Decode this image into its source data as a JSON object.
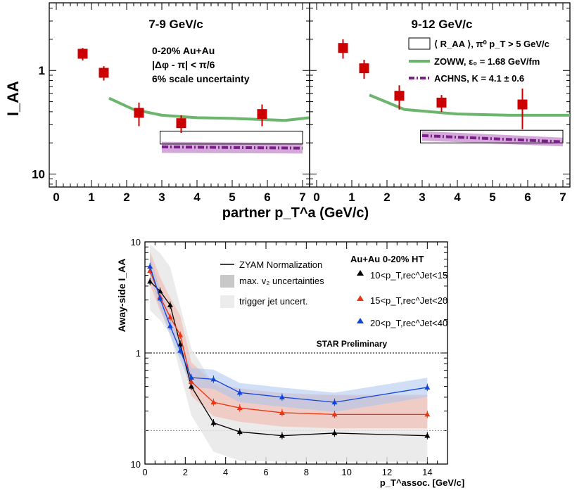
{
  "chart_data": [
    {
      "type": "scatter",
      "title": "7-9 GeV/c",
      "ylabel": "I_AA",
      "xlim": [
        -0.2,
        7.2
      ],
      "ylim": [
        0.075,
        4.5
      ],
      "log_y": true,
      "x_ticks": [
        "0",
        "1",
        "2",
        "3",
        "4",
        "5",
        "6",
        "7"
      ],
      "y_ticks": [
        "10^-1",
        "1"
      ],
      "annotations": [
        "0-20% Au+Au",
        "|Δφ - π| < π/6",
        "6% scale uncertainty"
      ],
      "points": {
        "x": [
          0.75,
          1.35,
          2.35,
          3.55,
          5.85
        ],
        "y": [
          1.45,
          0.95,
          0.39,
          0.31,
          0.38
        ],
        "err": [
          0.2,
          0.15,
          0.1,
          0.06,
          0.09
        ]
      },
      "box": {
        "x": [
          2.95,
          7.0
        ],
        "y": [
          0.195,
          0.26
        ]
      },
      "zoww": {
        "x": [
          1.5,
          2.2,
          3.0,
          4.0,
          5.0,
          6.5,
          7.2
        ],
        "y": [
          0.54,
          0.42,
          0.37,
          0.35,
          0.345,
          0.33,
          0.35
        ]
      },
      "achns": {
        "x": [
          3.0,
          7.0
        ],
        "y": [
          0.183,
          0.178
        ]
      },
      "achns_band": {
        "x": [
          3.0,
          7.0
        ],
        "lo": [
          0.16,
          0.158
        ],
        "hi": [
          0.205,
          0.2
        ]
      }
    },
    {
      "type": "scatter",
      "title": "9-12 GeV/c",
      "xlim": [
        -0.2,
        7.2
      ],
      "ylim": [
        0.075,
        4.5
      ],
      "log_y": true,
      "x_ticks": [
        "0",
        "1",
        "2",
        "3",
        "4",
        "5",
        "6",
        "7"
      ],
      "points": {
        "x": [
          0.75,
          1.35,
          2.35,
          3.55,
          5.85
        ],
        "y": [
          1.65,
          1.05,
          0.57,
          0.49,
          0.47
        ],
        "err": [
          0.35,
          0.22,
          0.15,
          0.09,
          0.2
        ]
      },
      "box": {
        "x": [
          2.95,
          7.0
        ],
        "y": [
          0.2,
          0.265
        ]
      },
      "zoww": {
        "x": [
          1.5,
          2.5,
          4.0,
          5.5,
          7.2
        ],
        "y": [
          0.58,
          0.42,
          0.38,
          0.37,
          0.37
        ]
      },
      "achns": {
        "x": [
          3.0,
          7.0
        ],
        "y": [
          0.235,
          0.205
        ]
      },
      "achns_band": {
        "x": [
          3.0,
          7.0
        ],
        "lo": [
          0.21,
          0.185
        ],
        "hi": [
          0.26,
          0.225
        ]
      },
      "legend": [
        {
          "label": "⟨ R_AA ⟩, π⁰ p_T > 5 GeV/c",
          "style": "box"
        },
        {
          "label": "ZOWW, ε₀ = 1.68 GeV/fm",
          "style": "green-line",
          "color": "#6cb56c"
        },
        {
          "label": "ACHNS, K = 4.1 ± 0.6",
          "style": "purple-dashdot",
          "color": "#7a1f8a"
        }
      ]
    },
    {
      "type": "line",
      "xlabel": "partner p_T^a (GeV/c)",
      "note": "shared x-axis label of the top panels"
    },
    {
      "type": "line",
      "ylabel": "Away-side I_AA",
      "xlabel": "p_T^assoc. [GeV/c]",
      "xlim": [
        0,
        15
      ],
      "ylim": [
        0.1,
        10
      ],
      "log_y": true,
      "x_ticks": [
        "0",
        "2",
        "4",
        "6",
        "8",
        "10",
        "12",
        "14"
      ],
      "y_ticks": [
        "10^-1",
        "1",
        "10"
      ],
      "annotation": "STAR Preliminary",
      "legend_title": "Au+Au 0-20% HT",
      "legend_left": [
        "ZYAM Normalization",
        "max. v₂ uncertainties",
        "trigger jet uncert."
      ],
      "series": [
        {
          "name": "10<p_T,rec^Jet<15",
          "color": "#000000",
          "x": [
            0.25,
            0.75,
            1.25,
            1.75,
            2.3,
            3.4,
            4.7,
            6.8,
            9.4,
            14.0
          ],
          "y": [
            4.4,
            3.6,
            2.7,
            1.2,
            0.5,
            0.235,
            0.195,
            0.18,
            0.19,
            0.18
          ]
        },
        {
          "name": "15<p_T,rec^Jet<20",
          "color": "#ee3311",
          "x": [
            0.25,
            0.75,
            1.25,
            1.75,
            2.3,
            3.4,
            4.7,
            6.8,
            9.4,
            14.0
          ],
          "y": [
            5.5,
            3.2,
            2.1,
            1.45,
            0.55,
            0.36,
            0.32,
            0.29,
            0.28,
            0.28
          ]
        },
        {
          "name": "20<p_T,rec^Jet<40",
          "color": "#1144dd",
          "x": [
            0.25,
            0.75,
            1.25,
            1.75,
            2.3,
            3.4,
            4.7,
            6.8,
            9.4,
            14.0
          ],
          "y": [
            6.0,
            3.1,
            1.75,
            1.05,
            0.6,
            0.58,
            0.44,
            0.4,
            0.36,
            0.49
          ]
        }
      ],
      "reference_lines": [
        1.0,
        0.2
      ]
    }
  ],
  "colors": {
    "marker": "#cc0000",
    "zoww": "#6cb56c",
    "achns": "#7a1f8a",
    "achns_band": "#c993d0"
  }
}
